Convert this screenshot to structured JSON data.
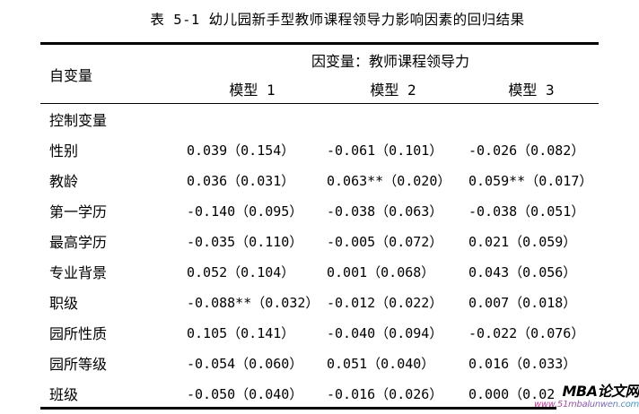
{
  "title": "表 5-1 幼儿园新手型教师课程领导力影响因素的回归结果",
  "table": {
    "header": {
      "independent_var_label": "自变量",
      "dependent_var_label": "因变量：教师课程领导力",
      "model_columns": [
        "模型 1",
        "模型 2",
        "模型 3"
      ]
    },
    "rows": [
      {
        "label": "控制变量",
        "model1": "",
        "model2": "",
        "model3": ""
      },
      {
        "label": "性别",
        "model1": "0.039（0.154）",
        "model2": "-0.061（0.101）",
        "model3": "-0.026（0.082）"
      },
      {
        "label": "教龄",
        "model1": "0.036（0.031）",
        "model2": "0.063**（0.020）",
        "model3": "0.059**（0.017）"
      },
      {
        "label": "第一学历",
        "model1": "-0.140（0.095）",
        "model2": "-0.038（0.063）",
        "model3": "-0.038（0.051）"
      },
      {
        "label": "最高学历",
        "model1": "-0.035（0.110）",
        "model2": "-0.005（0.072）",
        "model3": "0.021（0.059）"
      },
      {
        "label": "专业背景",
        "model1": "0.052（0.104）",
        "model2": "0.001（0.068）",
        "model3": "0.043（0.056）"
      },
      {
        "label": "职级",
        "model1": "-0.088**（0.032）",
        "model2": "-0.012（0.022）",
        "model3": "0.007（0.018）"
      },
      {
        "label": "园所性质",
        "model1": "0.105（0.141）",
        "model2": "-0.040（0.094）",
        "model3": "-0.022（0.076）"
      },
      {
        "label": "园所等级",
        "model1": "-0.054（0.060）",
        "model2": "0.051（0.040）",
        "model3": "0.016（0.033）"
      },
      {
        "label": "班级",
        "model1": "-0.050（0.040）",
        "model2": "-0.016（0.026）",
        "model3": "0.000（0.021）"
      }
    ]
  },
  "watermark": {
    "site_name": "MBA论文网",
    "site_url": "www.51mbalunwen.com",
    "url_gradient_start": "#d6308c",
    "url_gradient_mid": "#8a57c0",
    "url_gradient_end": "#2e9fd4",
    "text_color": "#000000",
    "background": "#ffffff"
  }
}
